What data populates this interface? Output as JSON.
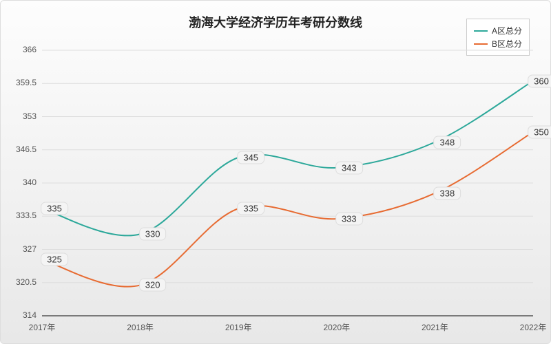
{
  "chart": {
    "type": "line",
    "title": "渤海大学经济学历年考研分数线",
    "title_fontsize": 18,
    "title_color": "#222222",
    "background_gradient_top": "#fdfdfd",
    "background_gradient_bottom": "#e8e8e8",
    "grid_color": "#dddddd",
    "axis_color": "#555555",
    "label_fontsize": 12,
    "data_label_fontsize": 13,
    "data_label_bg": "#f4f4f4",
    "data_label_border": "#dddddd",
    "xlim": [
      2017,
      2022
    ],
    "ylim": [
      314,
      366
    ],
    "ytick_step": 6.5,
    "x_categories": [
      "2017年",
      "2018年",
      "2019年",
      "2020年",
      "2021年",
      "2022年"
    ],
    "y_ticks": [
      314,
      320.5,
      327,
      333.5,
      340,
      346.5,
      353,
      359.5,
      366
    ],
    "line_width": 2,
    "curve_smoothing": 0.5,
    "series": [
      {
        "name": "A区总分",
        "color": "#2ca89a",
        "values": [
          335,
          330,
          345,
          343,
          348,
          360
        ]
      },
      {
        "name": "B区总分",
        "color": "#e76b32",
        "values": [
          325,
          320,
          335,
          333,
          338,
          350
        ]
      }
    ]
  }
}
